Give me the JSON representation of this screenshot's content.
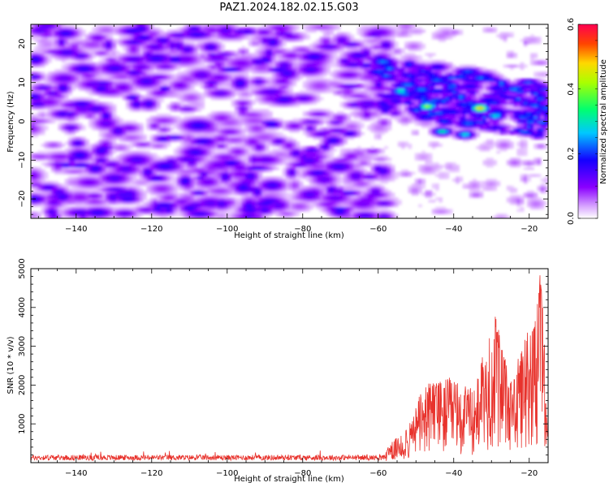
{
  "figure": {
    "title": "PAZ1.2024.182.02.15.G03"
  },
  "chart_data": [
    {
      "type": "heatmap",
      "xlabel": "Height of straight line (km)",
      "ylabel": "Frequency (Hz)",
      "xlim": [
        -152,
        -15
      ],
      "ylim": [
        -25,
        25
      ],
      "xticks": [
        -140,
        -120,
        -100,
        -80,
        -60,
        -40,
        -20
      ],
      "yticks": [
        -20,
        -10,
        0,
        10,
        20
      ],
      "colorbar": {
        "label": "Normalized spectral amplitude",
        "range": [
          0.0,
          0.6
        ],
        "ticks": [
          "0.0",
          "0.2",
          "0.4",
          "0.6"
        ],
        "colormap": "gist_rainbow_r"
      },
      "description_regions": [
        {
          "x_range": [
            -152,
            -60
          ],
          "freq_range": [
            -25,
            25
          ],
          "amplitude": [
            0.02,
            0.15
          ],
          "pattern": "scattered noise blobs"
        },
        {
          "x_range": [
            -60,
            -15
          ],
          "freq_range": [
            -5,
            12
          ],
          "amplitude": [
            0.15,
            0.5
          ],
          "pattern": "signal band drifting from ~10 Hz down to ~2 Hz"
        }
      ],
      "peaks": [
        {
          "x": -54,
          "y": 8,
          "v": 0.32
        },
        {
          "x": -47,
          "y": 4,
          "v": 0.42
        },
        {
          "x": -43,
          "y": -2.5,
          "v": 0.32
        },
        {
          "x": -37,
          "y": -3.3,
          "v": 0.3
        },
        {
          "x": -33,
          "y": 3.5,
          "v": 0.5
        },
        {
          "x": -29,
          "y": 1.5,
          "v": 0.3
        },
        {
          "x": -24,
          "y": 8.5,
          "v": 0.25
        },
        {
          "x": -20,
          "y": 2,
          "v": 0.22
        },
        {
          "x": -17,
          "y": 6,
          "v": 0.22
        }
      ]
    },
    {
      "type": "line",
      "xlabel": "Height of straight line (km)",
      "ylabel": "SNR (10 * v/v)",
      "xlim": [
        -152,
        -15
      ],
      "ylim": [
        0,
        5000
      ],
      "xticks": [
        -140,
        -120,
        -100,
        -80,
        -60,
        -40,
        -20
      ],
      "yticks": [
        1000,
        2000,
        3000,
        4000,
        5000
      ],
      "series": [
        {
          "color": "#e8322c",
          "description": "noise floor ~50-200 from -152 to -60 km, rising after -58 km to 500-2000, spikes near -29 km (~3800) and -17 km (~5000)",
          "key_points": [
            {
              "x": -152,
              "y": 120
            },
            {
              "x": -115,
              "y": 300
            },
            {
              "x": -70,
              "y": 180
            },
            {
              "x": -58,
              "y": 400
            },
            {
              "x": -52,
              "y": 900
            },
            {
              "x": -48,
              "y": 2100
            },
            {
              "x": -41,
              "y": 2200
            },
            {
              "x": -35,
              "y": 1900
            },
            {
              "x": -29,
              "y": 3800
            },
            {
              "x": -25,
              "y": 2100
            },
            {
              "x": -18,
              "y": 4100
            },
            {
              "x": -17,
              "y": 5000
            },
            {
              "x": -15,
              "y": 1400
            }
          ]
        }
      ]
    }
  ]
}
